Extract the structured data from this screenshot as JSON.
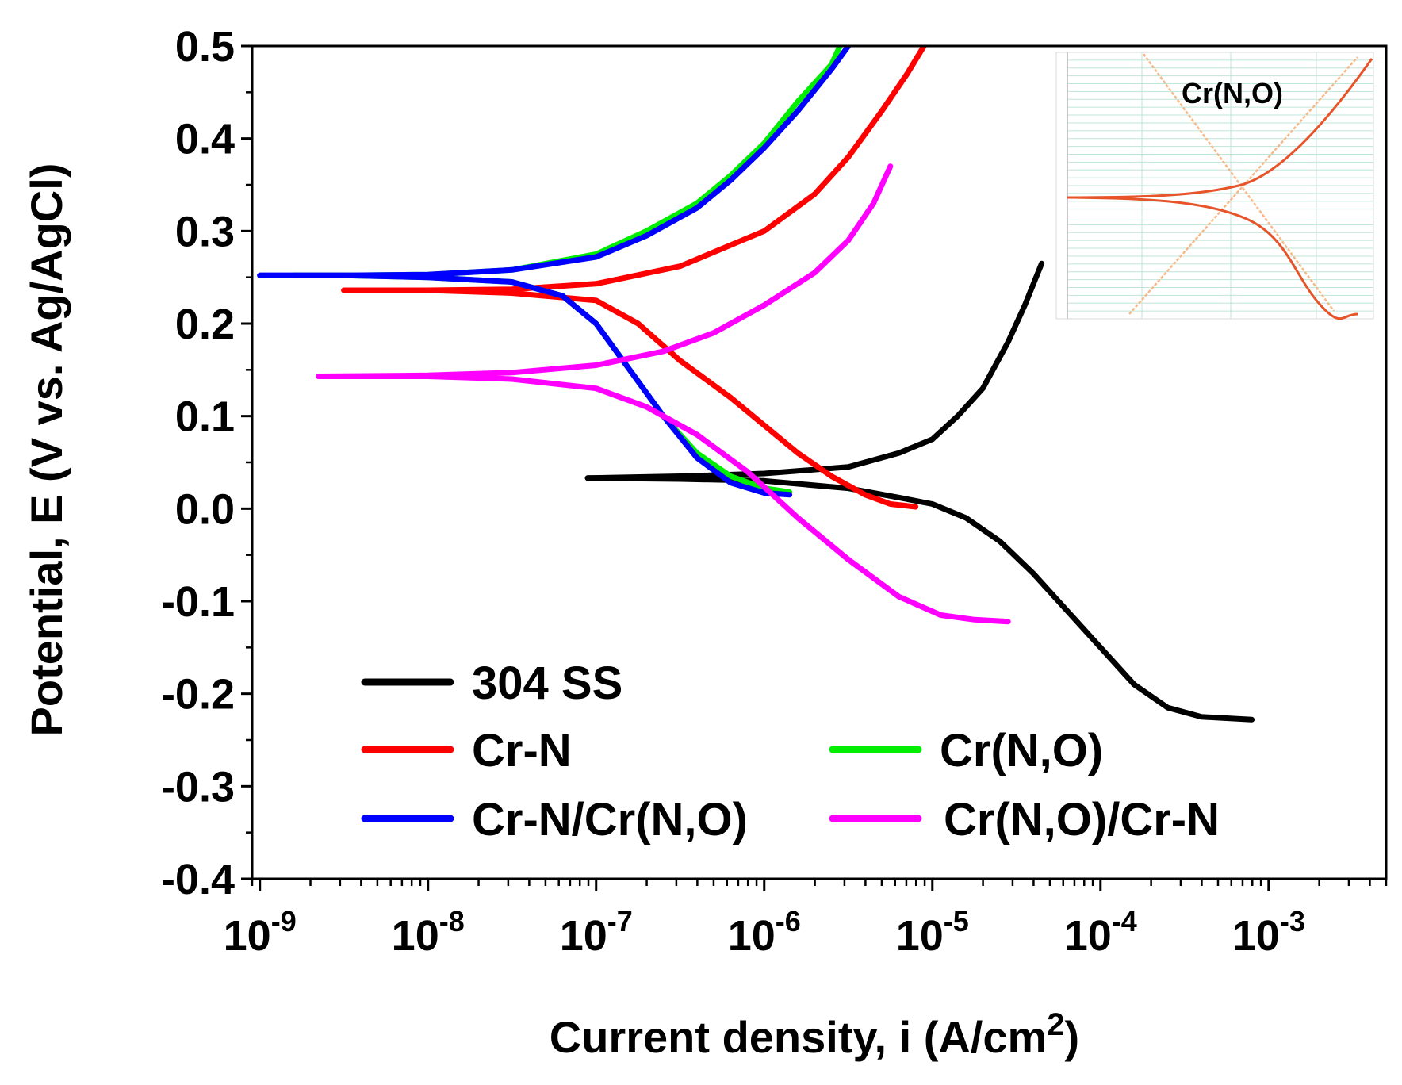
{
  "chart_data": {
    "type": "line",
    "title": "",
    "xlabel": "Current density, i (A/cm",
    "xlabel_sup": "2",
    "xlabel_close": ")",
    "ylabel": "Potential, E (V vs. Ag/AgCl)",
    "x_scale": "log",
    "xlim": [
      9e-10,
      0.005
    ],
    "ylim": [
      -0.4,
      0.5
    ],
    "y_ticks": [
      -0.4,
      -0.3,
      -0.2,
      -0.1,
      0.0,
      0.1,
      0.2,
      0.3,
      0.4,
      0.5
    ],
    "y_tick_labels": [
      "-0.4",
      "-0.3",
      "-0.2",
      "-0.1",
      "0.0",
      "0.1",
      "0.2",
      "0.3",
      "0.4",
      "0.5"
    ],
    "x_ticks": [
      -9,
      -8,
      -7,
      -6,
      -5,
      -4,
      -3
    ],
    "x_tick_base": "10",
    "x_tick_exponents": [
      "-9",
      "-8",
      "-7",
      "-6",
      "-5",
      "-4",
      "-3"
    ],
    "legend_position": "bottom-left",
    "series": [
      {
        "name": "304 SS",
        "color": "#000000",
        "anodic": [
          [
            -7.05,
            0.033
          ],
          [
            -6.5,
            0.035
          ],
          [
            -6.0,
            0.038
          ],
          [
            -5.5,
            0.045
          ],
          [
            -5.2,
            0.06
          ],
          [
            -5.0,
            0.075
          ],
          [
            -4.85,
            0.1
          ],
          [
            -4.7,
            0.13
          ],
          [
            -4.55,
            0.18
          ],
          [
            -4.45,
            0.22
          ],
          [
            -4.35,
            0.265
          ]
        ],
        "cathodic": [
          [
            -7.05,
            0.033
          ],
          [
            -6.5,
            0.032
          ],
          [
            -6.0,
            0.03
          ],
          [
            -5.5,
            0.022
          ],
          [
            -5.2,
            0.012
          ],
          [
            -5.0,
            0.005
          ],
          [
            -4.8,
            -0.01
          ],
          [
            -4.6,
            -0.035
          ],
          [
            -4.4,
            -0.07
          ],
          [
            -4.2,
            -0.11
          ],
          [
            -4.0,
            -0.15
          ],
          [
            -3.8,
            -0.19
          ],
          [
            -3.6,
            -0.215
          ],
          [
            -3.4,
            -0.225
          ],
          [
            -3.1,
            -0.228
          ]
        ]
      },
      {
        "name": "Cr-N",
        "color": "#ff0000",
        "anodic": [
          [
            -8.5,
            0.236
          ],
          [
            -8.0,
            0.236
          ],
          [
            -7.5,
            0.237
          ],
          [
            -7.0,
            0.243
          ],
          [
            -6.5,
            0.262
          ],
          [
            -6.0,
            0.3
          ],
          [
            -5.7,
            0.34
          ],
          [
            -5.5,
            0.38
          ],
          [
            -5.3,
            0.43
          ],
          [
            -5.15,
            0.47
          ],
          [
            -5.05,
            0.5
          ]
        ],
        "cathodic": [
          [
            -8.5,
            0.236
          ],
          [
            -8.0,
            0.236
          ],
          [
            -7.5,
            0.233
          ],
          [
            -7.0,
            0.225
          ],
          [
            -6.75,
            0.2
          ],
          [
            -6.5,
            0.16
          ],
          [
            -6.2,
            0.12
          ],
          [
            -6.0,
            0.09
          ],
          [
            -5.8,
            0.06
          ],
          [
            -5.6,
            0.035
          ],
          [
            -5.4,
            0.015
          ],
          [
            -5.25,
            0.005
          ],
          [
            -5.1,
            0.002
          ]
        ]
      },
      {
        "name": "Cr(N,O)",
        "color": "#00ee00",
        "anodic": [
          [
            -8.8,
            0.252
          ],
          [
            -8.5,
            0.252
          ],
          [
            -8.0,
            0.253
          ],
          [
            -7.5,
            0.258
          ],
          [
            -7.0,
            0.275
          ],
          [
            -6.7,
            0.3
          ],
          [
            -6.4,
            0.33
          ],
          [
            -6.2,
            0.36
          ],
          [
            -6.0,
            0.395
          ],
          [
            -5.8,
            0.44
          ],
          [
            -5.6,
            0.48
          ],
          [
            -5.55,
            0.5
          ]
        ],
        "cathodic": [
          [
            -8.8,
            0.252
          ],
          [
            -8.5,
            0.252
          ],
          [
            -8.0,
            0.25
          ],
          [
            -7.5,
            0.245
          ],
          [
            -7.2,
            0.23
          ],
          [
            -7.0,
            0.2
          ],
          [
            -6.8,
            0.15
          ],
          [
            -6.6,
            0.1
          ],
          [
            -6.4,
            0.06
          ],
          [
            -6.2,
            0.035
          ],
          [
            -6.0,
            0.022
          ],
          [
            -5.85,
            0.018
          ]
        ]
      },
      {
        "name": "Cr-N/Cr(N,O)",
        "color": "#0000ff",
        "anodic": [
          [
            -9.0,
            0.252
          ],
          [
            -8.5,
            0.252
          ],
          [
            -8.0,
            0.253
          ],
          [
            -7.5,
            0.258
          ],
          [
            -7.0,
            0.272
          ],
          [
            -6.7,
            0.295
          ],
          [
            -6.4,
            0.325
          ],
          [
            -6.2,
            0.355
          ],
          [
            -6.0,
            0.39
          ],
          [
            -5.8,
            0.43
          ],
          [
            -5.6,
            0.475
          ],
          [
            -5.5,
            0.5
          ]
        ],
        "cathodic": [
          [
            -9.0,
            0.252
          ],
          [
            -8.5,
            0.252
          ],
          [
            -8.0,
            0.25
          ],
          [
            -7.5,
            0.245
          ],
          [
            -7.2,
            0.23
          ],
          [
            -7.0,
            0.2
          ],
          [
            -6.8,
            0.15
          ],
          [
            -6.6,
            0.1
          ],
          [
            -6.4,
            0.055
          ],
          [
            -6.2,
            0.028
          ],
          [
            -6.0,
            0.017
          ],
          [
            -5.85,
            0.015
          ]
        ]
      },
      {
        "name": "Cr(N,O)/Cr-N",
        "color": "#ff00ff",
        "anodic": [
          [
            -8.65,
            0.143
          ],
          [
            -8.0,
            0.144
          ],
          [
            -7.5,
            0.147
          ],
          [
            -7.0,
            0.155
          ],
          [
            -6.6,
            0.17
          ],
          [
            -6.3,
            0.19
          ],
          [
            -6.0,
            0.22
          ],
          [
            -5.7,
            0.255
          ],
          [
            -5.5,
            0.29
          ],
          [
            -5.35,
            0.33
          ],
          [
            -5.25,
            0.37
          ]
        ],
        "cathodic": [
          [
            -8.65,
            0.143
          ],
          [
            -8.0,
            0.143
          ],
          [
            -7.5,
            0.14
          ],
          [
            -7.0,
            0.13
          ],
          [
            -6.7,
            0.11
          ],
          [
            -6.4,
            0.08
          ],
          [
            -6.1,
            0.04
          ],
          [
            -5.8,
            -0.01
          ],
          [
            -5.5,
            -0.055
          ],
          [
            -5.2,
            -0.095
          ],
          [
            -4.95,
            -0.115
          ],
          [
            -4.75,
            -0.12
          ],
          [
            -4.55,
            -0.122
          ]
        ]
      }
    ],
    "inset": {
      "label": "Cr(N,O)",
      "background": "#ffffff",
      "grid_color": "#bfe6d8",
      "curve_color": "#e8542a",
      "tafel_color": "#f6b98a"
    }
  }
}
